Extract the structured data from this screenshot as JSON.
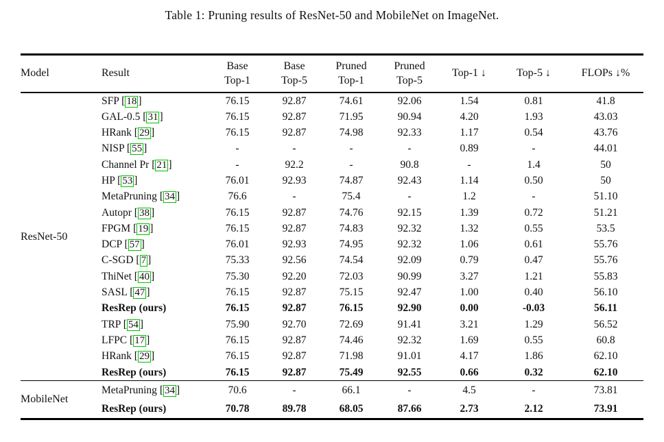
{
  "caption": "Table 1: Pruning results of ResNet-50 and MobileNet on ImageNet.",
  "colors": {
    "citation_box": "#00c000",
    "text": "#111111",
    "rule": "#000000"
  },
  "table": {
    "columns": [
      {
        "label": "Model"
      },
      {
        "label": "Result"
      },
      {
        "top": "Base",
        "bottom": "Top-1"
      },
      {
        "top": "Base",
        "bottom": "Top-5"
      },
      {
        "top": "Pruned",
        "bottom": "Top-1"
      },
      {
        "top": "Pruned",
        "bottom": "Top-5"
      },
      {
        "label": "Top-1 ↓"
      },
      {
        "label": "Top-5 ↓"
      },
      {
        "label": "FLOPs ↓%"
      }
    ],
    "groups": [
      {
        "model": "ResNet-50",
        "rows": [
          {
            "method": "SFP",
            "cite": "18",
            "bold": false,
            "values": [
              "76.15",
              "92.87",
              "74.61",
              "92.06",
              "1.54",
              "0.81",
              "41.8"
            ]
          },
          {
            "method": "GAL-0.5",
            "cite": "31",
            "bold": false,
            "values": [
              "76.15",
              "92.87",
              "71.95",
              "90.94",
              "4.20",
              "1.93",
              "43.03"
            ]
          },
          {
            "method": "HRank",
            "cite": "29",
            "bold": false,
            "values": [
              "76.15",
              "92.87",
              "74.98",
              "92.33",
              "1.17",
              "0.54",
              "43.76"
            ]
          },
          {
            "method": "NISP",
            "cite": "55",
            "bold": false,
            "values": [
              "-",
              "-",
              "-",
              "-",
              "0.89",
              "-",
              "44.01"
            ]
          },
          {
            "method": "Channel Pr",
            "cite": "21",
            "bold": false,
            "values": [
              "-",
              "92.2",
              "-",
              "90.8",
              "-",
              "1.4",
              "50"
            ]
          },
          {
            "method": "HP",
            "cite": "53",
            "bold": false,
            "values": [
              "76.01",
              "92.93",
              "74.87",
              "92.43",
              "1.14",
              "0.50",
              "50"
            ]
          },
          {
            "method": "MetaPruning",
            "cite": "34",
            "bold": false,
            "values": [
              "76.6",
              "-",
              "75.4",
              "-",
              "1.2",
              "-",
              "51.10"
            ]
          },
          {
            "method": "Autopr",
            "cite": "38",
            "bold": false,
            "values": [
              "76.15",
              "92.87",
              "74.76",
              "92.15",
              "1.39",
              "0.72",
              "51.21"
            ]
          },
          {
            "method": "FPGM",
            "cite": "19",
            "bold": false,
            "values": [
              "76.15",
              "92.87",
              "74.83",
              "92.32",
              "1.32",
              "0.55",
              "53.5"
            ]
          },
          {
            "method": "DCP",
            "cite": "57",
            "bold": false,
            "values": [
              "76.01",
              "92.93",
              "74.95",
              "92.32",
              "1.06",
              "0.61",
              "55.76"
            ]
          },
          {
            "method": "C-SGD",
            "cite": "7",
            "bold": false,
            "values": [
              "75.33",
              "92.56",
              "74.54",
              "92.09",
              "0.79",
              "0.47",
              "55.76"
            ]
          },
          {
            "method": "ThiNet",
            "cite": "40",
            "bold": false,
            "values": [
              "75.30",
              "92.20",
              "72.03",
              "90.99",
              "3.27",
              "1.21",
              "55.83"
            ]
          },
          {
            "method": "SASL",
            "cite": "47",
            "bold": false,
            "values": [
              "76.15",
              "92.87",
              "75.15",
              "92.47",
              "1.00",
              "0.40",
              "56.10"
            ]
          },
          {
            "method": "ResRep (ours)",
            "cite": null,
            "bold": true,
            "values": [
              "76.15",
              "92.87",
              "76.15",
              "92.90",
              "0.00",
              "-0.03",
              "56.11"
            ]
          },
          {
            "method": "TRP",
            "cite": "54",
            "bold": false,
            "values": [
              "75.90",
              "92.70",
              "72.69",
              "91.41",
              "3.21",
              "1.29",
              "56.52"
            ]
          },
          {
            "method": "LFPC",
            "cite": "17",
            "bold": false,
            "values": [
              "76.15",
              "92.87",
              "74.46",
              "92.32",
              "1.69",
              "0.55",
              "60.8"
            ]
          },
          {
            "method": "HRank",
            "cite": "29",
            "bold": false,
            "values": [
              "76.15",
              "92.87",
              "71.98",
              "91.01",
              "4.17",
              "1.86",
              "62.10"
            ]
          },
          {
            "method": "ResRep (ours)",
            "cite": null,
            "bold": true,
            "values": [
              "76.15",
              "92.87",
              "75.49",
              "92.55",
              "0.66",
              "0.32",
              "62.10"
            ]
          }
        ]
      },
      {
        "model": "MobileNet",
        "rows": [
          {
            "method": "MetaPruning",
            "cite": "34",
            "bold": false,
            "values": [
              "70.6",
              "-",
              "66.1",
              "-",
              "4.5",
              "-",
              "73.81"
            ]
          },
          {
            "method": "ResRep (ours)",
            "cite": null,
            "bold": true,
            "values": [
              "70.78",
              "89.78",
              "68.05",
              "87.66",
              "2.73",
              "2.12",
              "73.91"
            ]
          }
        ]
      }
    ]
  }
}
